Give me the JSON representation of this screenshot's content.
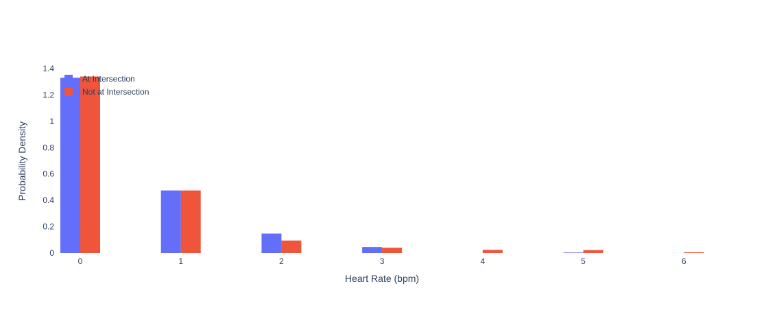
{
  "chart_data": {
    "type": "bar",
    "xlabel": "Heart Rate (bpm)",
    "ylabel": "Probability Density",
    "categories": [
      "0",
      "1",
      "2",
      "3",
      "4",
      "5",
      "6"
    ],
    "x": [
      0,
      1,
      2,
      3,
      4,
      5,
      6
    ],
    "ylim": [
      0,
      1.4
    ],
    "yticks": [
      0,
      0.2,
      0.4,
      0.6,
      0.8,
      1,
      1.2,
      1.4
    ],
    "yticklabels": [
      "0",
      "0.2",
      "0.4",
      "0.6",
      "0.8",
      "1",
      "1.2",
      "1.4"
    ],
    "grid": false,
    "legend_position": "top-left",
    "series": [
      {
        "name": "At Intersection",
        "color": "#636efa",
        "values": [
          1.33,
          0.475,
          0.148,
          0.046,
          0.0,
          0.004,
          0.0
        ]
      },
      {
        "name": "Not at Intersection",
        "color": "#ef553b",
        "values": [
          1.34,
          0.475,
          0.095,
          0.04,
          0.024,
          0.022,
          0.006
        ]
      }
    ]
  }
}
